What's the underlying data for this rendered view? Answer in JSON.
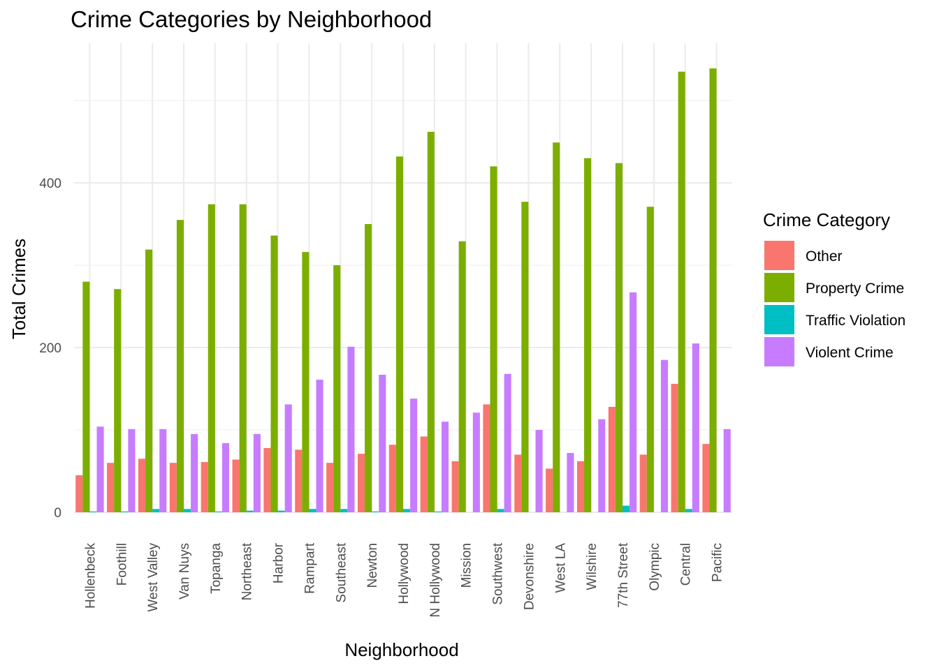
{
  "chart_data": {
    "type": "bar",
    "title": "Crime Categories by Neighborhood",
    "xlabel": "Neighborhood",
    "ylabel": "Total Crimes",
    "ylim": [
      0,
      540
    ],
    "yticks": [
      0,
      200,
      400
    ],
    "grid": true,
    "legend_title": "Crime Category",
    "legend_position": "right",
    "categories": [
      "Hollenbeck",
      "Foothill",
      "West Valley",
      "Van Nuys",
      "Topanga",
      "Northeast",
      "Harbor",
      "Rampart",
      "Southeast",
      "Newton",
      "Hollywood",
      "N Hollywood",
      "Mission",
      "Southwest",
      "Devonshire",
      "West LA",
      "Wilshire",
      "77th Street",
      "Olympic",
      "Central",
      "Pacific"
    ],
    "series": [
      {
        "name": "Other",
        "color": "#F8766D",
        "values": [
          45,
          60,
          65,
          60,
          61,
          64,
          78,
          76,
          60,
          71,
          82,
          92,
          62,
          131,
          70,
          53,
          62,
          128,
          70,
          156,
          83
        ]
      },
      {
        "name": "Property Crime",
        "color": "#7CAE00",
        "values": [
          280,
          271,
          319,
          355,
          374,
          374,
          336,
          316,
          300,
          350,
          432,
          462,
          329,
          420,
          377,
          449,
          430,
          424,
          371,
          535,
          539
        ]
      },
      {
        "name": "Traffic Violation",
        "color": "#00BFC4",
        "values": [
          1,
          1,
          4,
          4,
          1,
          2,
          2,
          4,
          4,
          1,
          4,
          1,
          0,
          4,
          0,
          0,
          0,
          8,
          0,
          4,
          0
        ]
      },
      {
        "name": "Violent Crime",
        "color": "#C77CFF",
        "values": [
          104,
          101,
          101,
          95,
          84,
          95,
          131,
          161,
          201,
          167,
          138,
          110,
          121,
          168,
          100,
          72,
          113,
          267,
          185,
          205,
          101
        ]
      }
    ]
  }
}
